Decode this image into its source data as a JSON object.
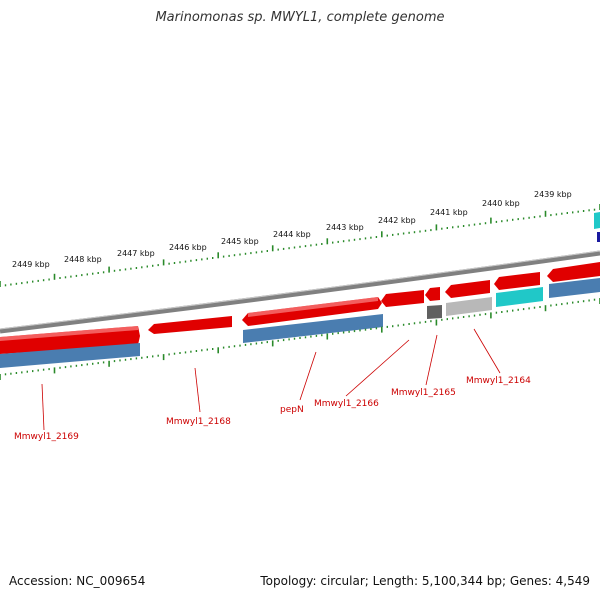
{
  "title": "Marinomonas sp. MWYL1, complete genome",
  "footer": {
    "accession": "Accession: NC_009654",
    "stats": "Topology: circular; Length: 5,100,344 bp; Genes: 4,549"
  },
  "colors": {
    "backbone": "#808080",
    "forward_gene": "#e00000",
    "reverse_cds": "#4a7db0",
    "gray_gene": "#606060",
    "light_gray_gene": "#b8b8b8",
    "cyan_gene": "#20c8c8",
    "tick": "#2a8a2a",
    "label": "#cc0000"
  },
  "ruler": {
    "labels": [
      "2449 kbp",
      "2448 kbp",
      "2447 kbp",
      "2446 kbp",
      "2445 kbp",
      "2444 kbp",
      "2443 kbp",
      "2442 kbp",
      "2441 kbp",
      "2440 kbp",
      "2439 kbp"
    ]
  },
  "genes": [
    {
      "label": "Mmwyl1_2169"
    },
    {
      "label": "Mmwyl1_2168"
    },
    {
      "label": "pepN"
    },
    {
      "label": "Mmwyl1_2166"
    },
    {
      "label": "Mmwyl1_2165"
    },
    {
      "label": "Mmwyl1_2164"
    }
  ]
}
